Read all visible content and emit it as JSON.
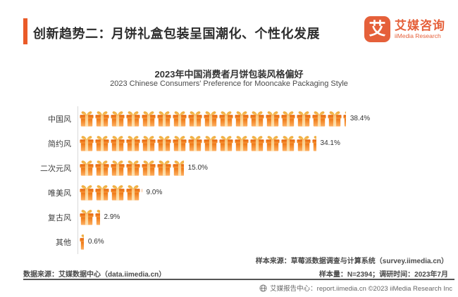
{
  "colors": {
    "accent": "#EA5B28",
    "brand": "#E5603A",
    "bar_body_top": "#EE7511",
    "bar_body_bottom": "#FDB061",
    "bow_gold": "#F2B24B"
  },
  "header": {
    "title": "创新趋势二：月饼礼盒包装呈国潮化、个性化发展"
  },
  "logo": {
    "glyph": "艾",
    "brand_cn": "艾媒咨询",
    "brand_en": "iiMedia Research"
  },
  "chart": {
    "title": "2023年中国消费者月饼包装风格偏好",
    "subtitle": "2023 Chinese Consumers' Preference for Mooncake Packaging Style"
  },
  "chart_data": {
    "type": "bar",
    "orientation": "horizontal",
    "pictogram": "gift-box",
    "title": "2023年中国消费者月饼包装风格偏好",
    "subtitle": "2023 Chinese Consumers' Preference for Mooncake Packaging Style",
    "categories": [
      "中国风",
      "简约风",
      "二次元风",
      "唯美风",
      "复古风",
      "其他"
    ],
    "values": [
      38.4,
      34.1,
      15.0,
      9.0,
      2.9,
      0.6
    ],
    "value_labels": [
      "38.4%",
      "34.1%",
      "15.0%",
      "9.0%",
      "2.9%",
      "0.6%"
    ],
    "unit": "%",
    "xlim": [
      0,
      42
    ],
    "grid": false,
    "legend": false,
    "value_label_position": "end"
  },
  "footnotes": {
    "sample_source": "样本来源：草莓派数据调查与计算系统（survey.iimedia.cn）",
    "sample_info": "样本量：N=2394；调研时间：2023年7月",
    "data_source": "数据来源：艾媒数据中心（data.iimedia.cn）"
  },
  "footer": {
    "report_center": "艾媒报告中心：report.iimedia.cn ©2023 iiMedia Research Inc"
  }
}
